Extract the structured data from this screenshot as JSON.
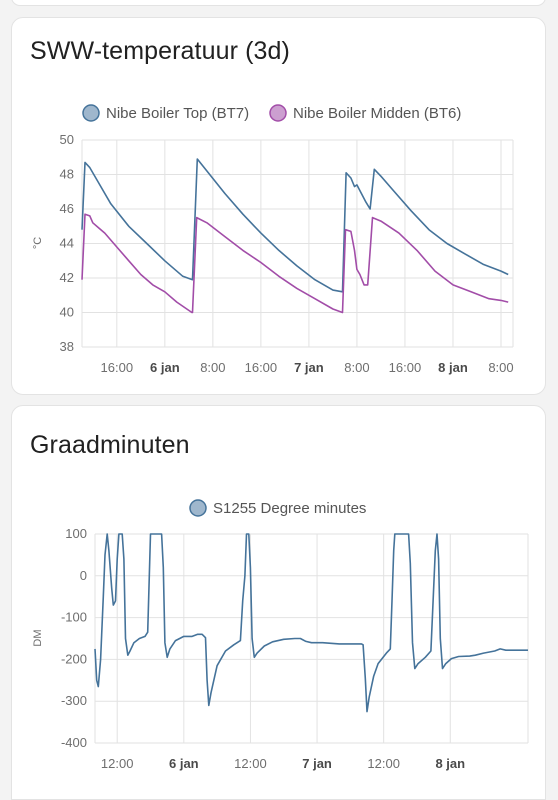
{
  "cards": [
    {
      "title": "SWW-temperatuur (3d)",
      "chart_data": {
        "type": "line",
        "title": "SWW-temperatuur (3d)",
        "ylabel": "°C",
        "ylim": [
          38,
          50
        ],
        "yticks": [
          38,
          40,
          42,
          44,
          46,
          48,
          50
        ],
        "xlim": [
          10.2,
          82.0
        ],
        "xticks": [
          {
            "x": 16,
            "label": "16:00",
            "bold": false
          },
          {
            "x": 24,
            "label": "6 jan",
            "bold": true
          },
          {
            "x": 32,
            "label": "8:00",
            "bold": false
          },
          {
            "x": 40,
            "label": "16:00",
            "bold": false
          },
          {
            "x": 48,
            "label": "7 jan",
            "bold": true
          },
          {
            "x": 56,
            "label": "8:00",
            "bold": false
          },
          {
            "x": 64,
            "label": "16:00",
            "bold": false
          },
          {
            "x": 72,
            "label": "8 jan",
            "bold": true
          },
          {
            "x": 80,
            "label": "8:00",
            "bold": false
          }
        ],
        "x_unit": "hours since 5 jan 00:00",
        "grid": true,
        "legend": "top",
        "series": [
          {
            "name": "Nibe Boiler Top (BT7)",
            "color": "#45739a",
            "fill": "#9fb7cd",
            "points": [
              [
                10.2,
                44.8
              ],
              [
                10.7,
                48.7
              ],
              [
                11.5,
                48.4
              ],
              [
                13,
                47.5
              ],
              [
                15,
                46.3
              ],
              [
                18,
                45.0
              ],
              [
                21,
                44.0
              ],
              [
                24,
                43.0
              ],
              [
                27,
                42.1
              ],
              [
                28.6,
                41.9
              ],
              [
                29.4,
                48.9
              ],
              [
                31,
                48.2
              ],
              [
                34,
                46.9
              ],
              [
                37,
                45.7
              ],
              [
                40,
                44.6
              ],
              [
                43,
                43.6
              ],
              [
                46,
                42.7
              ],
              [
                49,
                41.9
              ],
              [
                52,
                41.3
              ],
              [
                53.6,
                41.2
              ],
              [
                54.2,
                48.1
              ],
              [
                55,
                47.8
              ],
              [
                55.6,
                47.3
              ],
              [
                56,
                47.4
              ],
              [
                57.5,
                46.4
              ],
              [
                58.2,
                46.0
              ],
              [
                58.9,
                48.3
              ],
              [
                60,
                47.9
              ],
              [
                62,
                47.1
              ],
              [
                65,
                45.9
              ],
              [
                68,
                44.8
              ],
              [
                71,
                44.0
              ],
              [
                74,
                43.4
              ],
              [
                77,
                42.8
              ],
              [
                80,
                42.4
              ],
              [
                81.2,
                42.2
              ]
            ]
          },
          {
            "name": "Nibe Boiler Midden (BT6)",
            "color": "#a24da8",
            "fill": "#cc9fd0",
            "points": [
              [
                10.2,
                41.9
              ],
              [
                10.7,
                45.7
              ],
              [
                11.5,
                45.6
              ],
              [
                12,
                45.2
              ],
              [
                13,
                44.9
              ],
              [
                14,
                44.6
              ],
              [
                16,
                43.8
              ],
              [
                18,
                43.0
              ],
              [
                20,
                42.2
              ],
              [
                22,
                41.6
              ],
              [
                24,
                41.2
              ],
              [
                26,
                40.6
              ],
              [
                28.5,
                40.0
              ],
              [
                28.6,
                40.0
              ],
              [
                29.3,
                45.5
              ],
              [
                31,
                45.2
              ],
              [
                34,
                44.4
              ],
              [
                37,
                43.6
              ],
              [
                40,
                42.9
              ],
              [
                43,
                42.1
              ],
              [
                46,
                41.4
              ],
              [
                49,
                40.8
              ],
              [
                52,
                40.2
              ],
              [
                53.6,
                40.0
              ],
              [
                54.1,
                44.8
              ],
              [
                55,
                44.7
              ],
              [
                55.6,
                43.6
              ],
              [
                56,
                42.5
              ],
              [
                56.5,
                42.2
              ],
              [
                57.2,
                41.6
              ],
              [
                57.8,
                41.6
              ],
              [
                58.6,
                45.5
              ],
              [
                60,
                45.3
              ],
              [
                63,
                44.6
              ],
              [
                66,
                43.6
              ],
              [
                69,
                42.4
              ],
              [
                72,
                41.6
              ],
              [
                75,
                41.2
              ],
              [
                78,
                40.8
              ],
              [
                80,
                40.7
              ],
              [
                81.2,
                40.6
              ]
            ]
          }
        ]
      }
    },
    {
      "title": "Graadminuten",
      "chart_data": {
        "type": "line",
        "title": "Graadminuten",
        "ylabel": "DM",
        "ylim": [
          -400,
          100
        ],
        "yticks": [
          -400,
          -300,
          -200,
          -100,
          0,
          100
        ],
        "xlim": [
          8.0,
          86.0
        ],
        "xticks": [
          {
            "x": 12,
            "label": "12:00",
            "bold": false
          },
          {
            "x": 24,
            "label": "6 jan",
            "bold": true
          },
          {
            "x": 36,
            "label": "12:00",
            "bold": false
          },
          {
            "x": 48,
            "label": "7 jan",
            "bold": true
          },
          {
            "x": 60,
            "label": "12:00",
            "bold": false
          },
          {
            "x": 72,
            "label": "8 jan",
            "bold": true
          }
        ],
        "x_unit": "hours since 5 jan 00:00",
        "grid": true,
        "legend": "top",
        "series": [
          {
            "name": "S1255 Degree minutes",
            "color": "#45739a",
            "fill": "#9fb7cd",
            "points": [
              [
                8.0,
                -175
              ],
              [
                8.3,
                -250
              ],
              [
                8.6,
                -265
              ],
              [
                9.0,
                -200
              ],
              [
                9.5,
                -50
              ],
              [
                9.8,
                50
              ],
              [
                10.2,
                100
              ],
              [
                10.5,
                60
              ],
              [
                11.0,
                -30
              ],
              [
                11.3,
                -70
              ],
              [
                11.7,
                -60
              ],
              [
                12.0,
                40
              ],
              [
                12.3,
                100
              ],
              [
                12.9,
                100
              ],
              [
                13.2,
                40
              ],
              [
                13.5,
                -150
              ],
              [
                13.9,
                -190
              ],
              [
                14.3,
                -180
              ],
              [
                15.0,
                -160
              ],
              [
                16.0,
                -150
              ],
              [
                17.0,
                -145
              ],
              [
                17.5,
                -135
              ],
              [
                18.0,
                100
              ],
              [
                20.0,
                100
              ],
              [
                20.3,
                20
              ],
              [
                20.6,
                -160
              ],
              [
                21.0,
                -195
              ],
              [
                21.5,
                -175
              ],
              [
                22.5,
                -155
              ],
              [
                24.0,
                -145
              ],
              [
                25.5,
                -145
              ],
              [
                26.5,
                -140
              ],
              [
                27.3,
                -140
              ],
              [
                27.9,
                -148
              ],
              [
                28.2,
                -250
              ],
              [
                28.5,
                -310
              ],
              [
                28.9,
                -280
              ],
              [
                30.0,
                -215
              ],
              [
                31.5,
                -180
              ],
              [
                33.0,
                -165
              ],
              [
                34.2,
                -155
              ],
              [
                34.6,
                -60
              ],
              [
                35.0,
                0
              ],
              [
                35.3,
                100
              ],
              [
                35.7,
                100
              ],
              [
                36.0,
                20
              ],
              [
                36.3,
                -150
              ],
              [
                36.7,
                -195
              ],
              [
                37.2,
                -185
              ],
              [
                38.5,
                -168
              ],
              [
                40.0,
                -158
              ],
              [
                42.0,
                -152
              ],
              [
                44.0,
                -150
              ],
              [
                45.0,
                -150
              ],
              [
                46.0,
                -157
              ],
              [
                47.0,
                -160
              ],
              [
                49.0,
                -160
              ],
              [
                52.0,
                -163
              ],
              [
                53.0,
                -163
              ],
              [
                54.0,
                -163
              ],
              [
                56.0,
                -163
              ],
              [
                56.3,
                -165
              ],
              [
                56.7,
                -245
              ],
              [
                57.0,
                -325
              ],
              [
                57.4,
                -290
              ],
              [
                58.2,
                -240
              ],
              [
                59.0,
                -210
              ],
              [
                60.5,
                -185
              ],
              [
                61.2,
                -175
              ],
              [
                61.5,
                -60
              ],
              [
                61.8,
                60
              ],
              [
                62.0,
                100
              ],
              [
                64.5,
                100
              ],
              [
                64.8,
                30
              ],
              [
                65.2,
                -160
              ],
              [
                65.6,
                -222
              ],
              [
                66.2,
                -210
              ],
              [
                67.5,
                -195
              ],
              [
                68.5,
                -180
              ],
              [
                68.9,
                -60
              ],
              [
                69.3,
                60
              ],
              [
                69.6,
                100
              ],
              [
                69.9,
                40
              ],
              [
                70.2,
                -150
              ],
              [
                70.6,
                -222
              ],
              [
                71.2,
                -210
              ],
              [
                72.2,
                -198
              ],
              [
                73.5,
                -193
              ],
              [
                75.5,
                -192
              ],
              [
                76.5,
                -190
              ],
              [
                78.0,
                -185
              ],
              [
                80.0,
                -180
              ],
              [
                81.0,
                -175
              ],
              [
                82.0,
                -178
              ],
              [
                83.0,
                -178
              ],
              [
                84.0,
                -178
              ],
              [
                86.0,
                -178
              ]
            ]
          }
        ]
      }
    }
  ]
}
